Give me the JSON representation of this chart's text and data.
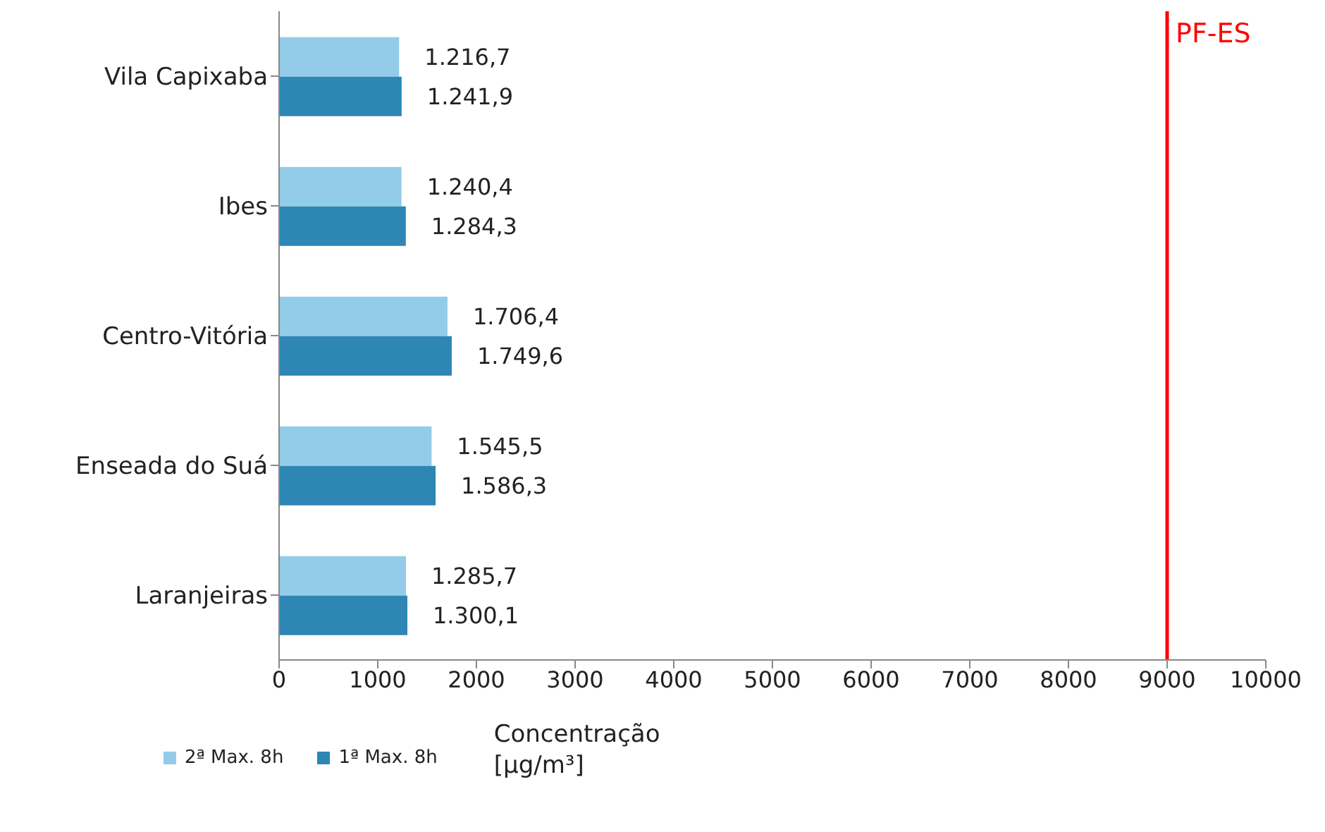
{
  "chart_data": {
    "type": "bar",
    "orientation": "horizontal",
    "xlabel": "Concentração [µg/m³]",
    "categories": [
      "Vila Capixaba",
      "Ibes",
      "Centro-Vitória",
      "Enseada do Suá",
      "Laranjeiras"
    ],
    "series": [
      {
        "name": "2ª Max. 8h",
        "color": "#93cce8",
        "values": [
          1216.7,
          1240.4,
          1706.4,
          1545.5,
          1285.7
        ],
        "value_labels": [
          "1.216,7",
          "1.240,4",
          "1.706,4",
          "1.545,5",
          "1.285,7"
        ]
      },
      {
        "name": "1ª Max. 8h",
        "color": "#2e86b4",
        "values": [
          1241.9,
          1284.3,
          1749.6,
          1586.3,
          1300.1
        ],
        "value_labels": [
          "1.241,9",
          "1.284,3",
          "1.749,6",
          "1.586,3",
          "1.300,1"
        ]
      }
    ],
    "xlim": [
      0,
      10000
    ],
    "xticks": [
      0,
      1000,
      2000,
      3000,
      4000,
      5000,
      6000,
      7000,
      8000,
      9000,
      10000
    ],
    "ref_lines": [
      {
        "axis": "x",
        "value": 9000,
        "label": "PF-ES",
        "color": "#ff0000"
      }
    ],
    "grid": false,
    "legend": "bottom left"
  }
}
